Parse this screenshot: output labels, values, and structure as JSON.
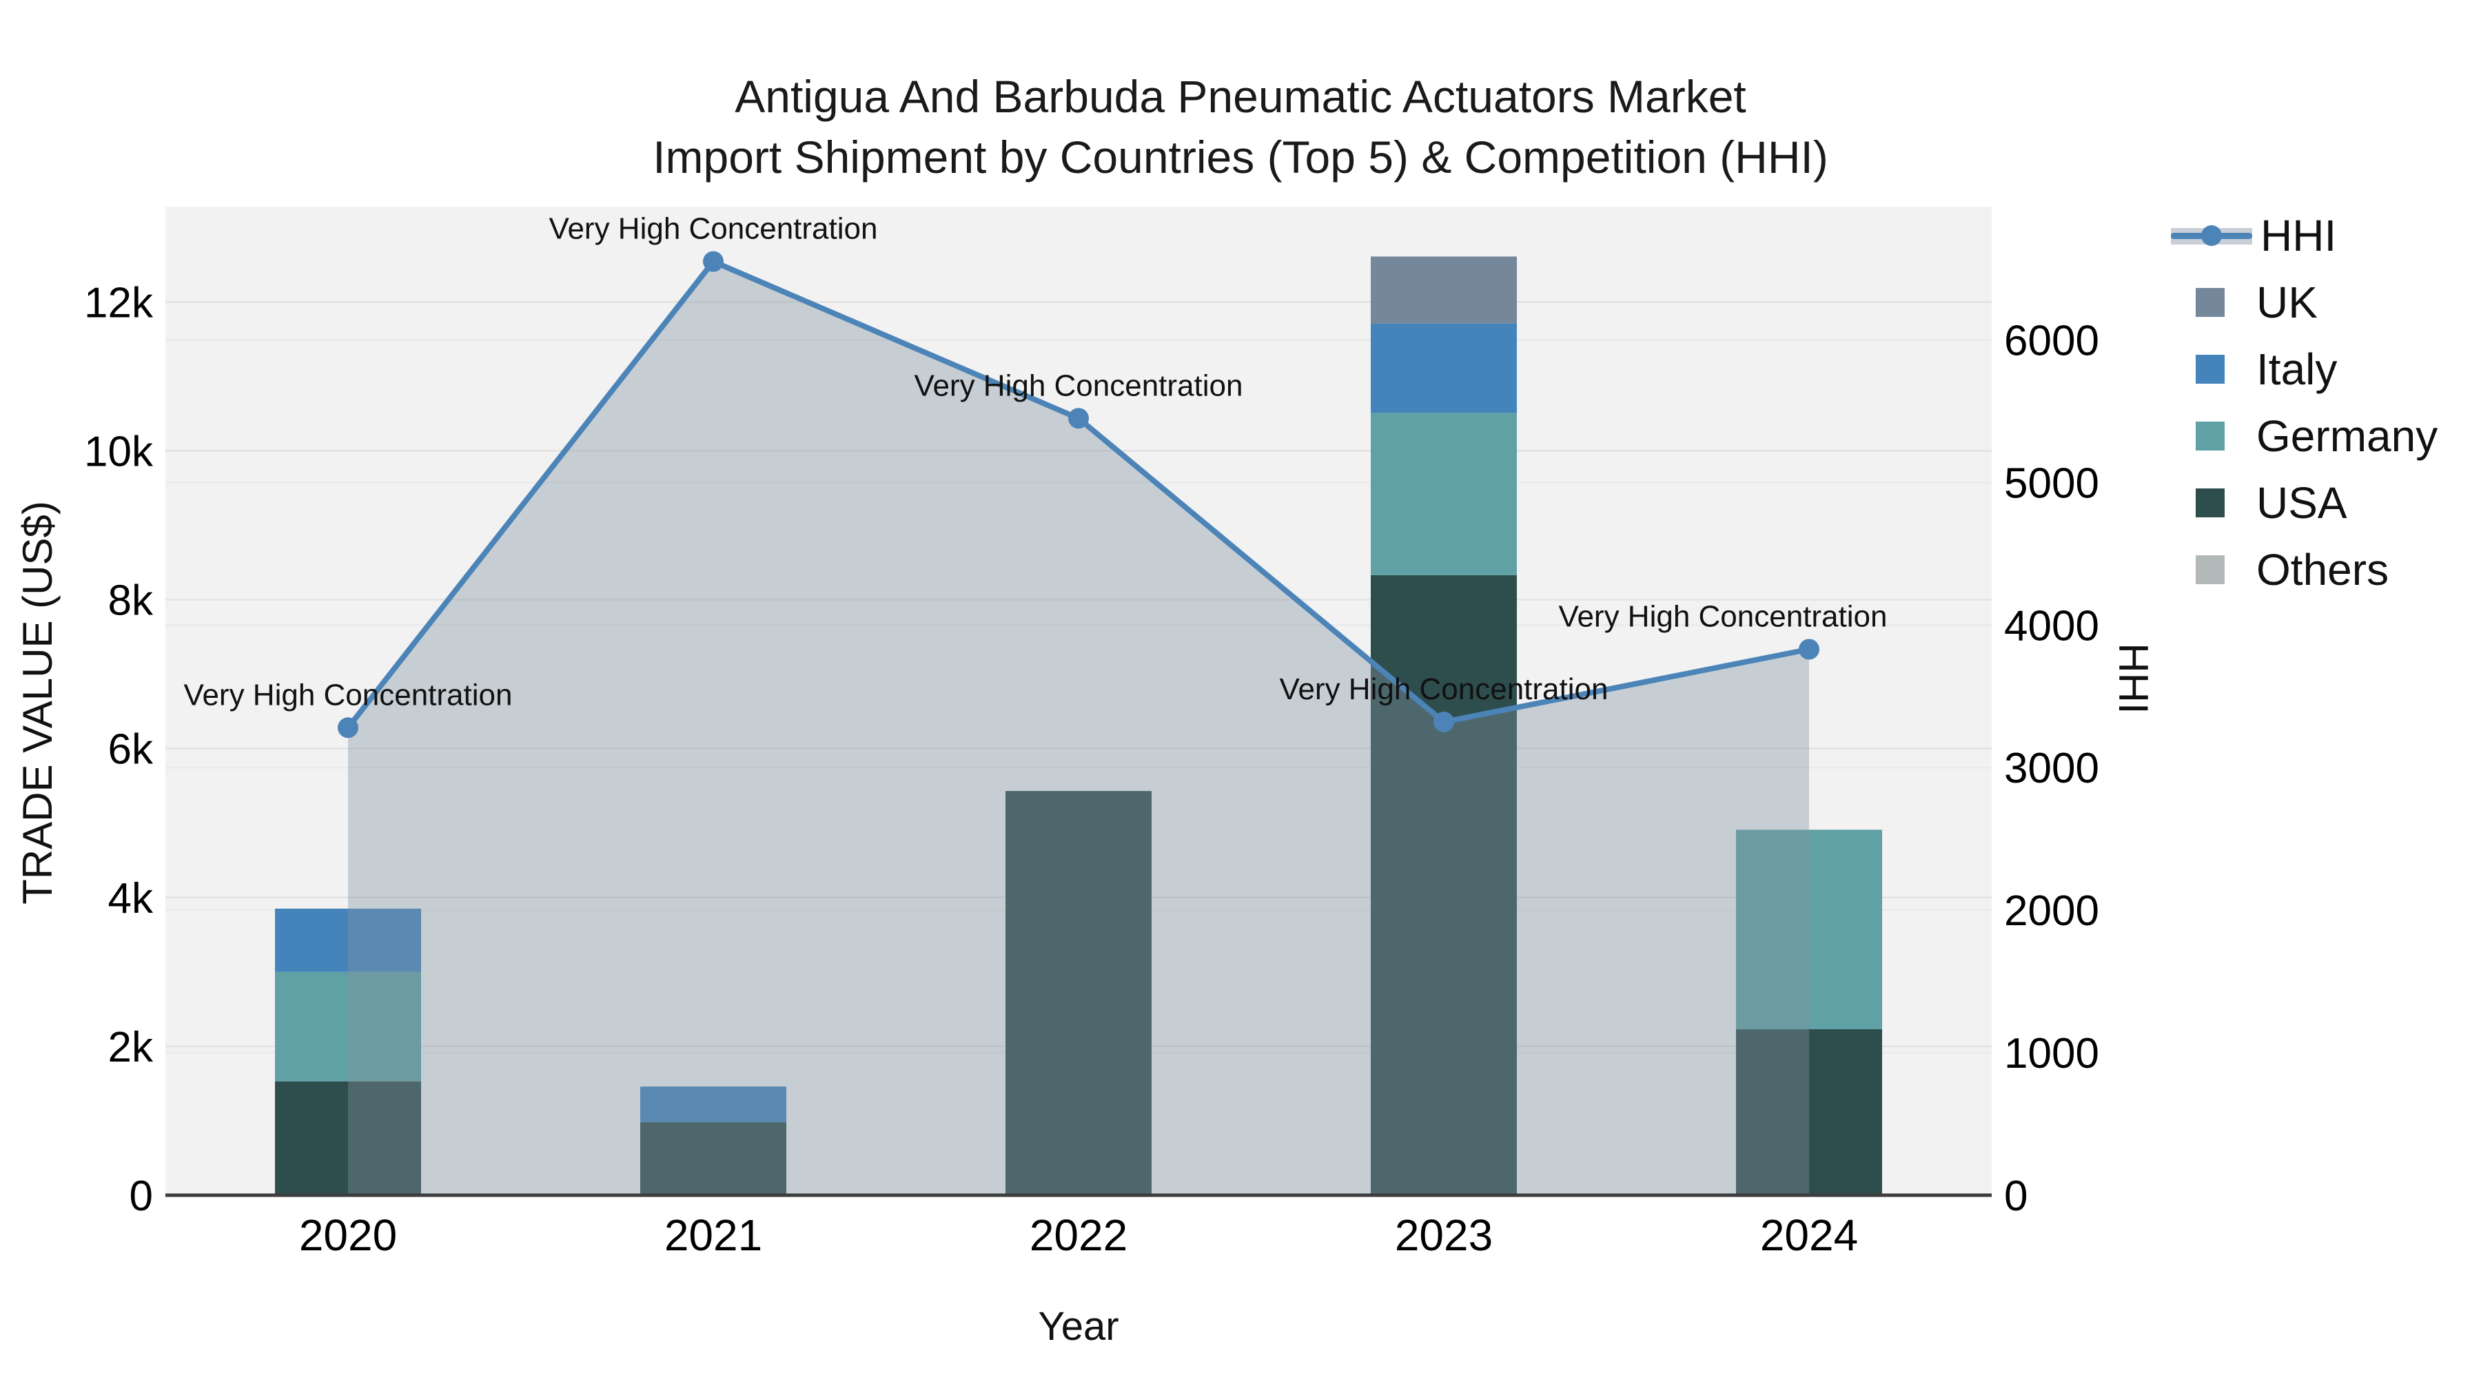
{
  "title": {
    "line1": "Antigua And Barbuda Pneumatic Actuators Market",
    "line2": "Import Shipment by Countries (Top 5) & Competition (HHI)"
  },
  "legend": {
    "items": [
      {
        "label": "HHI",
        "type": "line",
        "color": "#4d84b8",
        "band_color": "#c9cfd8"
      },
      {
        "label": "UK",
        "type": "box",
        "color": "#74879b"
      },
      {
        "label": "Italy",
        "type": "box",
        "color": "#4583bb"
      },
      {
        "label": "Germany",
        "type": "box",
        "color": "#5fa1a4"
      },
      {
        "label": "USA",
        "type": "box",
        "color": "#2e4d4d"
      },
      {
        "label": "Others",
        "type": "box",
        "color": "#b3b8b8"
      }
    ]
  },
  "chart_data": {
    "type": "bar",
    "subtype": "stacked-bars-with-line",
    "categories": [
      "2020",
      "2021",
      "2022",
      "2023",
      "2024"
    ],
    "series": [
      {
        "name": "USA",
        "values": [
          1530,
          980,
          5430,
          8330,
          2230
        ],
        "color": "#2e4d4d"
      },
      {
        "name": "Germany",
        "values": [
          1470,
          0,
          0,
          2180,
          2680
        ],
        "color": "#5fa1a4"
      },
      {
        "name": "Italy",
        "values": [
          850,
          480,
          0,
          1200,
          0
        ],
        "color": "#4583bb"
      },
      {
        "name": "UK",
        "values": [
          0,
          0,
          0,
          900,
          0
        ],
        "color": "#74879b"
      },
      {
        "name": "Others",
        "values": [
          0,
          0,
          0,
          0,
          0
        ],
        "color": "#b3b8b8"
      }
    ],
    "line_series": {
      "name": "HHI",
      "values": [
        3280,
        6550,
        5450,
        3320,
        3830
      ],
      "color": "#4d84b8",
      "area_fill": "rgba(130,148,160,0.38)",
      "axis": "right"
    },
    "annotations": [
      {
        "text": "Very High Concentration",
        "index": 0,
        "dx": 0
      },
      {
        "text": "Very High Concentration",
        "index": 1,
        "dx": 0
      },
      {
        "text": "Very High Concentration",
        "index": 2,
        "dx": 0
      },
      {
        "text": "Very High Concentration",
        "index": 3,
        "dx": 0
      },
      {
        "text": "Very High Concentration",
        "index": 4,
        "dx": -125
      }
    ],
    "left_axis": {
      "title": "TRADE VALUE (US$)",
      "tick_labels": [
        "0",
        "2k",
        "4k",
        "6k",
        "8k",
        "10k",
        "12k"
      ],
      "tick_values": [
        0,
        2000,
        4000,
        6000,
        8000,
        10000,
        12000
      ],
      "max": 13280
    },
    "right_axis": {
      "title": "HHI",
      "tick_labels": [
        "0",
        "1000",
        "2000",
        "3000",
        "4000",
        "5000",
        "6000"
      ],
      "tick_values": [
        0,
        1000,
        2000,
        3000,
        4000,
        5000,
        6000
      ],
      "max": 6935
    },
    "x_axis": {
      "title": "Year"
    },
    "plot_bg": "#f2f2f2",
    "grid_color_left": "#e3e3e3",
    "grid_color_right": "#eaeaea",
    "axis_line_color": "#3d3d3d",
    "legend_position": "right",
    "grid": true
  }
}
